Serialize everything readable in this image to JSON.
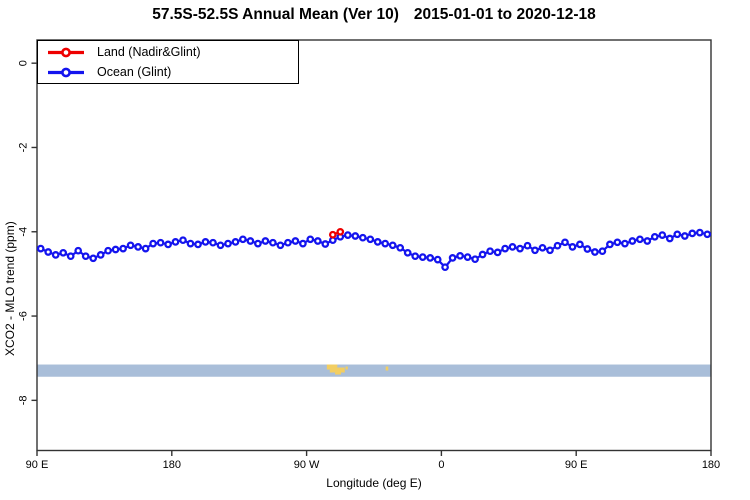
{
  "title": {
    "range": "57.5S-52.5S Annual Mean (Ver 10)",
    "dates": "2015-01-01 to 2020-12-18"
  },
  "legend": {
    "items": [
      {
        "label": "Land (Nadir&Glint)",
        "color": "#ee0000"
      },
      {
        "label": "Ocean (Glint)",
        "color": "#1414ee"
      }
    ]
  },
  "colors": {
    "axis": "#333333",
    "ocean_series": "#1414ee",
    "land_series": "#ee0000",
    "strip_ocean": "#a9bed9",
    "strip_land": "#f2ce62"
  },
  "chart_data": {
    "type": "line",
    "title": "57.5S-52.5S Annual Mean (Ver 10)  2015-01-01 to 2020-12-18",
    "xlabel": "Longitude (deg E)",
    "ylabel": "XCO2 - MLO trend (ppm)",
    "xlim": [
      90,
      540
    ],
    "ylim": [
      -9.19,
      0.55
    ],
    "x_axis_note": "longitude axis wraps: 90E → 180 → 90W → 0 → 90E → 180",
    "x_ticks": [
      {
        "value": 90,
        "label": "90 E"
      },
      {
        "value": 180,
        "label": "180"
      },
      {
        "value": 270,
        "label": "90 W"
      },
      {
        "value": 360,
        "label": "0"
      },
      {
        "value": 450,
        "label": "90 E"
      },
      {
        "value": 540,
        "label": "180"
      }
    ],
    "y_ticks": [
      {
        "value": 0,
        "label": "0"
      },
      {
        "value": -2,
        "label": "-2"
      },
      {
        "value": -4,
        "label": "-4"
      },
      {
        "value": -6,
        "label": "-6"
      },
      {
        "value": -8,
        "label": "-8"
      }
    ],
    "grid": false,
    "legend_position": "top-left",
    "series": [
      {
        "name": "Land (Nadir&Glint)",
        "color": "#ee0000",
        "marker": "open-circle",
        "x": [
          287.5,
          292.5
        ],
        "values": [
          -4.07,
          -4.0
        ]
      },
      {
        "name": "Ocean (Glint)",
        "color": "#1414ee",
        "marker": "open-circle",
        "x": [
          92.5,
          97.5,
          102.5,
          107.5,
          112.5,
          117.5,
          122.5,
          127.5,
          132.5,
          137.5,
          142.5,
          147.5,
          152.5,
          157.5,
          162.5,
          167.5,
          172.5,
          177.5,
          182.5,
          187.5,
          192.5,
          197.5,
          202.5,
          207.5,
          212.5,
          217.5,
          222.5,
          227.5,
          232.5,
          237.5,
          242.5,
          247.5,
          252.5,
          257.5,
          262.5,
          267.5,
          272.5,
          277.5,
          282.5,
          287.5,
          292.5,
          297.5,
          302.5,
          307.5,
          312.5,
          317.5,
          322.5,
          327.5,
          332.5,
          337.5,
          342.5,
          347.5,
          352.5,
          357.5,
          362.5,
          367.5,
          372.5,
          377.5,
          382.5,
          387.5,
          392.5,
          397.5,
          402.5,
          407.5,
          412.5,
          417.5,
          422.5,
          427.5,
          432.5,
          437.5,
          442.5,
          447.5,
          452.5,
          457.5,
          462.5,
          467.5,
          472.5,
          477.5,
          482.5,
          487.5,
          492.5,
          497.5,
          502.5,
          507.5,
          512.5,
          517.5,
          522.5,
          527.5,
          532.5,
          537.5
        ],
        "values": [
          -4.4,
          -4.48,
          -4.55,
          -4.5,
          -4.58,
          -4.45,
          -4.58,
          -4.63,
          -4.55,
          -4.45,
          -4.42,
          -4.4,
          -4.32,
          -4.36,
          -4.4,
          -4.28,
          -4.26,
          -4.3,
          -4.24,
          -4.2,
          -4.28,
          -4.3,
          -4.24,
          -4.26,
          -4.32,
          -4.28,
          -4.24,
          -4.18,
          -4.22,
          -4.28,
          -4.22,
          -4.26,
          -4.32,
          -4.26,
          -4.22,
          -4.28,
          -4.18,
          -4.22,
          -4.29,
          -4.2,
          -4.12,
          -4.08,
          -4.1,
          -4.14,
          -4.18,
          -4.24,
          -4.28,
          -4.32,
          -4.38,
          -4.5,
          -4.58,
          -4.6,
          -4.62,
          -4.66,
          -4.84,
          -4.62,
          -4.57,
          -4.6,
          -4.65,
          -4.54,
          -4.46,
          -4.49,
          -4.4,
          -4.36,
          -4.4,
          -4.33,
          -4.44,
          -4.38,
          -4.44,
          -4.33,
          -4.25,
          -4.36,
          -4.3,
          -4.41,
          -4.48,
          -4.46,
          -4.3,
          -4.25,
          -4.28,
          -4.22,
          -4.18,
          -4.22,
          -4.12,
          -4.08,
          -4.16,
          -4.06,
          -4.1,
          -4.04,
          -4.02,
          -4.06
        ]
      }
    ],
    "land_ocean_strip": {
      "v_top": -7.15,
      "v_bottom": -7.44,
      "ocean_color": "#a9bed9",
      "land_color": "#f2ce62",
      "land_patches": [
        {
          "lon0": 283.5,
          "lon1": 290.5,
          "dy": 0,
          "h": 5
        },
        {
          "lon0": 285.5,
          "lon1": 295.5,
          "dy": 3,
          "h": 5
        },
        {
          "lon0": 289.0,
          "lon1": 293.0,
          "dy": 7,
          "h": 3
        },
        {
          "lon0": 296.0,
          "lon1": 297.5,
          "dy": 2,
          "h": 3
        },
        {
          "lon0": 322.8,
          "lon1": 324.5,
          "dy": 2,
          "h": 4
        }
      ]
    }
  }
}
